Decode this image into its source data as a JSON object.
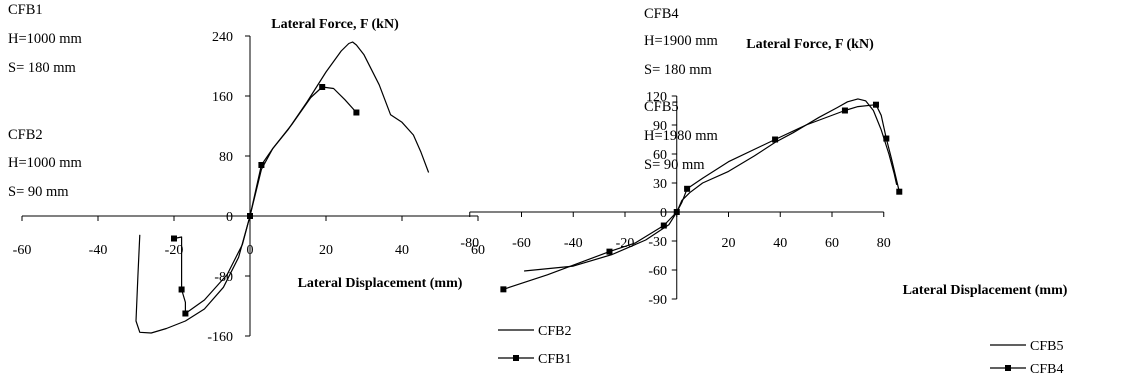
{
  "colors": {
    "line": "#000000",
    "background": "#ffffff"
  },
  "chart_data": [
    {
      "type": "line",
      "title": "",
      "xlabel": "Lateral Displacement (mm)",
      "ylabel": "Lateral Force, F (kN)",
      "xlim": [
        -60,
        60
      ],
      "ylim": [
        -160,
        240
      ],
      "xticks": [
        "-60",
        "-40",
        "-20",
        "0",
        "20",
        "40",
        "60"
      ],
      "yticks": [
        "-160",
        "-80",
        "0",
        "80",
        "160",
        "240"
      ],
      "grid": false,
      "legend_position": "bottom-right",
      "annotations": [
        [
          "CFB1",
          "H=1000 mm",
          "S= 180 mm"
        ],
        [
          "CFB2",
          "H=1000 mm",
          "S= 90  mm"
        ]
      ],
      "series": [
        {
          "name": "CFB2",
          "marker": "none",
          "points": [
            [
              -29,
              -25
            ],
            [
              -29.5,
              -80
            ],
            [
              -30,
              -140
            ],
            [
              -29,
              -155
            ],
            [
              -26,
              -156
            ],
            [
              -22,
              -150
            ],
            [
              -17,
              -140
            ],
            [
              -12,
              -124
            ],
            [
              -7,
              -95
            ],
            [
              -3,
              -55
            ],
            [
              0,
              0
            ],
            [
              3,
              62
            ],
            [
              6,
              90
            ],
            [
              10,
              115
            ],
            [
              15,
              152
            ],
            [
              20,
              192
            ],
            [
              24,
              220
            ],
            [
              26,
              230
            ],
            [
              27,
              232
            ],
            [
              28,
              228
            ],
            [
              30,
              215
            ],
            [
              34,
              175
            ],
            [
              37,
              135
            ],
            [
              40,
              125
            ],
            [
              43,
              108
            ],
            [
              45,
              85
            ],
            [
              47,
              58
            ]
          ]
        },
        {
          "name": "CFB1",
          "marker": "square",
          "points": [
            [
              -20,
              -30
            ],
            [
              -18,
              -28
            ],
            [
              -18,
              -60
            ],
            [
              -18,
              -98
            ],
            [
              -17,
              -115
            ],
            [
              -17,
              -130
            ],
            [
              -12,
              -112
            ],
            [
              -6,
              -78
            ],
            [
              -2,
              -38
            ],
            [
              0,
              0
            ],
            [
              3,
              68
            ],
            [
              6,
              90
            ],
            [
              11,
              122
            ],
            [
              16,
              158
            ],
            [
              19,
              172
            ],
            [
              22,
              170
            ],
            [
              25,
              155
            ],
            [
              28,
              138
            ]
          ],
          "marked_points": [
            [
              -20,
              -30
            ],
            [
              -18,
              -98
            ],
            [
              -17,
              -130
            ],
            [
              0,
              0
            ],
            [
              3,
              68
            ],
            [
              19,
              172
            ],
            [
              28,
              138
            ]
          ]
        }
      ]
    },
    {
      "type": "line",
      "title": "",
      "xlabel": "Lateral Displacement (mm)",
      "ylabel": "Lateral Force, F (kN)",
      "xlim": [
        -80,
        80
      ],
      "ylim": [
        -90,
        120
      ],
      "xticks": [
        "-80",
        "-60",
        "-40",
        "-20",
        "0",
        "20",
        "40",
        "60",
        "80"
      ],
      "yticks": [
        "-90",
        "-60",
        "-30",
        "0",
        "30",
        "60",
        "90",
        "120"
      ],
      "grid": false,
      "legend_position": "bottom-right",
      "annotations": [
        [
          "CFB4",
          "H=1900 mm",
          "S= 180 mm"
        ],
        [
          "CFB5",
          "H=1980 mm",
          "S= 90  mm"
        ]
      ],
      "series": [
        {
          "name": "CFB5",
          "marker": "none",
          "points": [
            [
              -59,
              -61
            ],
            [
              -40,
              -56
            ],
            [
              -25,
              -44
            ],
            [
              -12,
              -29
            ],
            [
              -3,
              -13
            ],
            [
              0,
              0
            ],
            [
              2,
              12
            ],
            [
              5,
              20
            ],
            [
              10,
              30
            ],
            [
              20,
              42
            ],
            [
              30,
              58
            ],
            [
              38,
              72
            ],
            [
              45,
              82
            ],
            [
              55,
              98
            ],
            [
              62,
              108
            ],
            [
              66,
              114
            ],
            [
              70,
              117
            ],
            [
              73,
              115
            ],
            [
              76,
              105
            ],
            [
              79,
              85
            ],
            [
              82,
              60
            ],
            [
              84,
              40
            ],
            [
              85,
              28
            ]
          ]
        },
        {
          "name": "CFB4",
          "marker": "square",
          "points": [
            [
              -67,
              -80
            ],
            [
              -50,
              -65
            ],
            [
              -26,
              -41
            ],
            [
              -16,
              -32
            ],
            [
              -5,
              -14
            ],
            [
              0,
              0
            ],
            [
              2,
              10
            ],
            [
              4,
              24
            ],
            [
              10,
              35
            ],
            [
              20,
              52
            ],
            [
              38,
              75
            ],
            [
              50,
              90
            ],
            [
              65,
              105
            ],
            [
              70,
              109
            ],
            [
              77,
              111
            ],
            [
              79,
              100
            ],
            [
              81,
              76
            ],
            [
              83,
              55
            ],
            [
              86,
              21
            ]
          ],
          "marked_points": [
            [
              -67,
              -80
            ],
            [
              -26,
              -41
            ],
            [
              -5,
              -14
            ],
            [
              0,
              0
            ],
            [
              4,
              24
            ],
            [
              38,
              75
            ],
            [
              65,
              105
            ],
            [
              77,
              111
            ],
            [
              81,
              76
            ],
            [
              86,
              21
            ]
          ]
        }
      ]
    }
  ]
}
